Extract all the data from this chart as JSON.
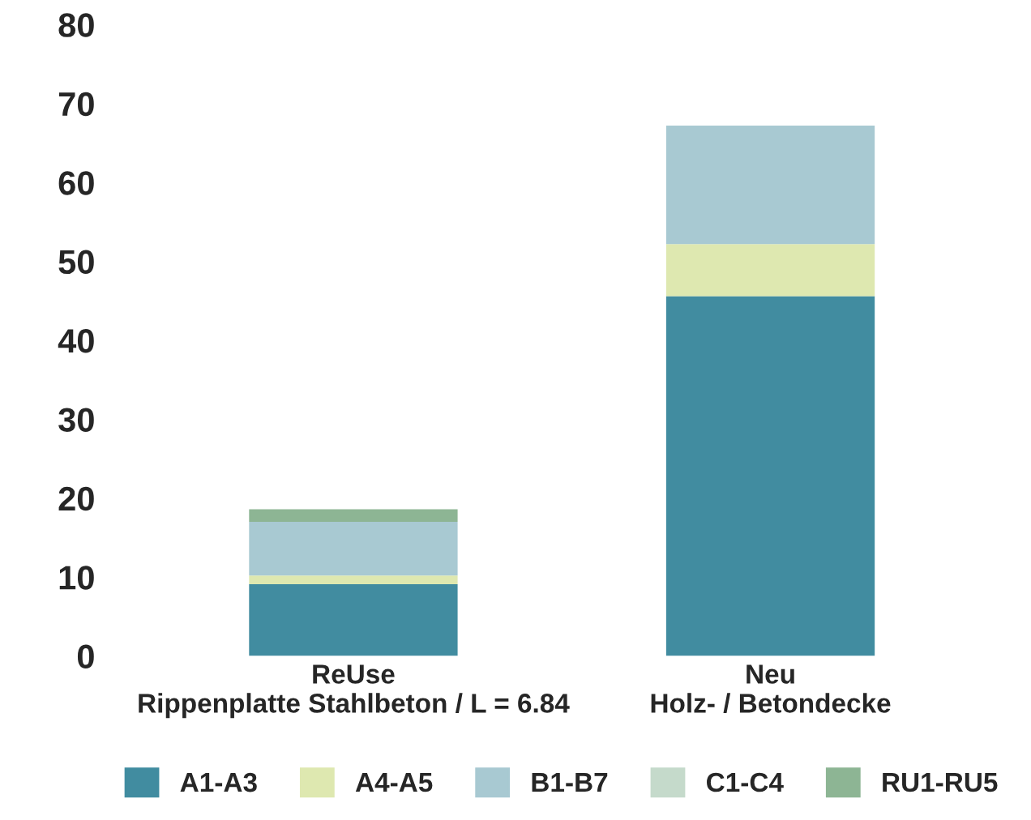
{
  "chart_data": {
    "type": "bar",
    "stacked": true,
    "categories": [
      "ReUse\nRippenplatte Stahlbeton / L = 6.84",
      "Neu\nHolz- / Betondecke"
    ],
    "series": [
      {
        "name": "A1-A3",
        "color": "#418ca0",
        "values": [
          9.1,
          45.6
        ]
      },
      {
        "name": "A4-A5",
        "color": "#dee8b0",
        "values": [
          1.1,
          6.6
        ]
      },
      {
        "name": "B1-B7",
        "color": "#a8c9d2",
        "values": [
          6.8,
          15.0
        ]
      },
      {
        "name": "C1-C4",
        "color": "#c5dacb",
        "values": [
          null,
          null
        ]
      },
      {
        "name": "RU1-RU5",
        "color": "#8db594",
        "values": [
          1.6,
          0
        ]
      }
    ],
    "ylim": [
      0,
      80
    ],
    "yticks": [
      0,
      10,
      20,
      30,
      40,
      50,
      60,
      70,
      80
    ],
    "grid": false,
    "legend": "bottom"
  }
}
